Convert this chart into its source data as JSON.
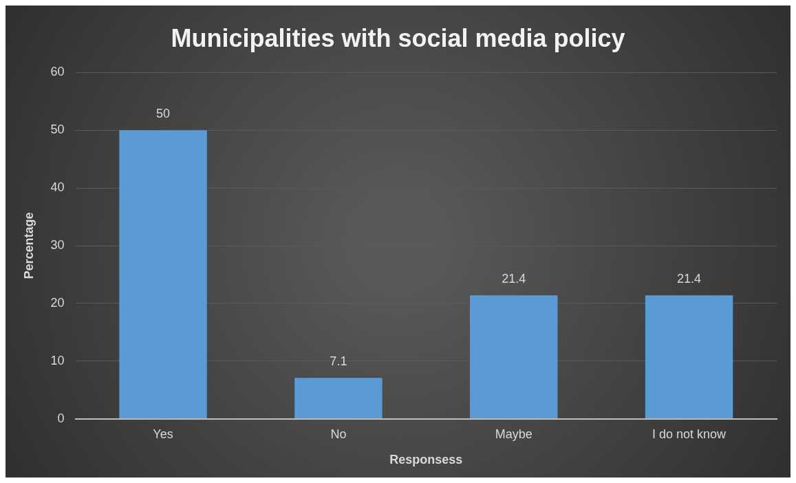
{
  "chart_data": {
    "type": "bar",
    "title": "Municipalities with social media policy",
    "xlabel": "Responsess",
    "ylabel": "Percentage",
    "categories": [
      "Yes",
      "No",
      "Maybe",
      "I do not know"
    ],
    "values": [
      50,
      7.1,
      21.4,
      21.4
    ],
    "color": "#5b9bd5",
    "ylim": [
      0,
      60
    ],
    "yticks": [
      0,
      10,
      20,
      30,
      40,
      50,
      60
    ],
    "grid": "y",
    "data_labels": true,
    "legend": false
  }
}
